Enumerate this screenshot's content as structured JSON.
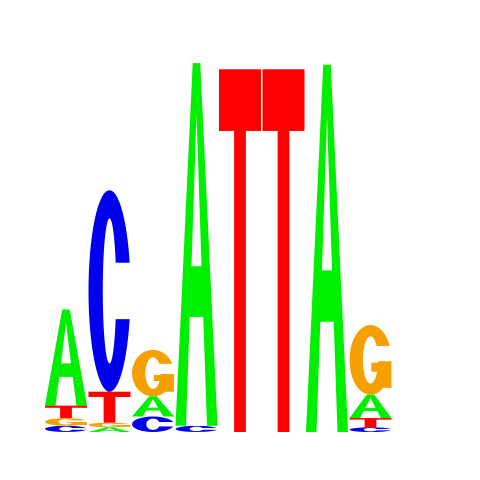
{
  "logo": {
    "colors": {
      "A": "#00ee00",
      "C": "#0000ee",
      "G": "#f5a000",
      "T": "#ff0000"
    },
    "positions": [
      {
        "stack": [
          {
            "letter": "C",
            "height": 0.04
          },
          {
            "letter": "G",
            "height": 0.05
          },
          {
            "letter": "T",
            "height": 0.08
          },
          {
            "letter": "A",
            "height": 0.62
          }
        ]
      },
      {
        "stack": [
          {
            "letter": "A",
            "height": 0.03
          },
          {
            "letter": "G",
            "height": 0.03
          },
          {
            "letter": "T",
            "height": 0.2
          },
          {
            "letter": "C",
            "height": 1.3
          }
        ]
      },
      {
        "stack": [
          {
            "letter": "C",
            "height": 0.1
          },
          {
            "letter": "A",
            "height": 0.13
          },
          {
            "letter": "G",
            "height": 0.3
          }
        ]
      },
      {
        "stack": [
          {
            "letter": "C",
            "height": 0.04
          },
          {
            "letter": "A",
            "height": 2.34
          }
        ]
      },
      {
        "stack": [
          {
            "letter": "T",
            "height": 2.34
          }
        ]
      },
      {
        "stack": [
          {
            "letter": "T",
            "height": 2.34
          }
        ]
      },
      {
        "stack": [
          {
            "letter": "A",
            "height": 2.37
          }
        ]
      },
      {
        "stack": [
          {
            "letter": "C",
            "height": 0.03
          },
          {
            "letter": "T",
            "height": 0.06
          },
          {
            "letter": "A",
            "height": 0.15
          },
          {
            "letter": "G",
            "height": 0.45
          }
        ]
      }
    ]
  }
}
